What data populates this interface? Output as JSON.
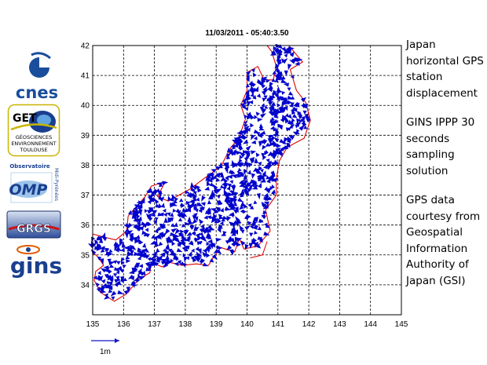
{
  "logos": {
    "cnes": "cnes",
    "get": "GET",
    "get_lines": [
      "GÉOSCIENCES",
      "ENVIRONNEMENT",
      "TOULOUSE"
    ],
    "observatoire": "Observatoire",
    "midi_pyrenees": "Midi-Pyrénées",
    "omp": "OMP",
    "grgs": "GRGS",
    "gins": "gins"
  },
  "plot": {
    "title": "11/03/2011 - 05:40:3.50",
    "scale_label": "1m"
  },
  "caption": {
    "paragraphs": [
      "Japan horizontal GPS station displacement",
      "GINS IPPP 30 seconds sampling solution",
      "GPS data courtesy from Geospatial Information Authority of Japan (GSI)"
    ]
  },
  "map_data": {
    "lon_range": [
      135,
      145
    ],
    "lat_range": [
      33,
      42
    ],
    "lon_ticks": [
      135,
      136,
      137,
      138,
      139,
      140,
      141,
      142,
      143,
      144,
      145
    ],
    "lat_ticks": [
      34,
      35,
      36,
      37,
      38,
      39,
      40,
      41,
      42
    ],
    "grid": "dashed",
    "coastline_color": "#e00000",
    "arrow_color": "#0000cc",
    "frame_color": "#000000",
    "scale_bar_length_m": 1,
    "coastline": [
      [
        141.35,
        42
      ],
      [
        141.8,
        41.45
      ],
      [
        141.4,
        41.2
      ],
      [
        141.6,
        40.5
      ],
      [
        141.9,
        40.1
      ],
      [
        142.05,
        39.5
      ],
      [
        141.85,
        38.9
      ],
      [
        141.3,
        38.6
      ],
      [
        141.05,
        38.15
      ],
      [
        140.95,
        37.55
      ],
      [
        140.95,
        37.0
      ],
      [
        140.6,
        36.5
      ],
      [
        140.75,
        35.8
      ],
      [
        140.35,
        35.3
      ],
      [
        139.9,
        35.2
      ],
      [
        139.75,
        35.55
      ],
      [
        139.6,
        35.1
      ],
      [
        139.15,
        35.25
      ],
      [
        138.9,
        34.9
      ],
      [
        138.75,
        34.65
      ],
      [
        138.35,
        34.7
      ],
      [
        137.9,
        34.65
      ],
      [
        137.5,
        34.75
      ],
      [
        137.25,
        34.6
      ],
      [
        136.9,
        34.75
      ],
      [
        136.85,
        34.4
      ],
      [
        136.5,
        34.2
      ],
      [
        136.1,
        33.7
      ],
      [
        135.7,
        33.45
      ],
      [
        135.25,
        33.75
      ],
      [
        135.05,
        34.15
      ],
      [
        135.1,
        34.45
      ],
      [
        135.35,
        34.65
      ],
      [
        135.2,
        34.9
      ],
      [
        135,
        35.1
      ],
      [
        135,
        35.7
      ],
      [
        135.35,
        35.6
      ],
      [
        135.75,
        35.5
      ],
      [
        136.1,
        35.8
      ],
      [
        136.15,
        36.3
      ],
      [
        136.7,
        36.95
      ],
      [
        136.9,
        37.3
      ],
      [
        137.35,
        37.45
      ],
      [
        137.1,
        36.95
      ],
      [
        137.45,
        36.8
      ],
      [
        138.15,
        37.2
      ],
      [
        138.6,
        37.55
      ],
      [
        139.15,
        37.95
      ],
      [
        139.45,
        38.55
      ],
      [
        139.75,
        38.95
      ],
      [
        139.95,
        39.55
      ],
      [
        139.8,
        40.0
      ],
      [
        140.0,
        40.5
      ],
      [
        140.0,
        41.1
      ],
      [
        140.35,
        41.3
      ],
      [
        140.55,
        40.85
      ],
      [
        140.85,
        40.85
      ],
      [
        140.95,
        41.3
      ],
      [
        140.8,
        41.8
      ],
      [
        140.65,
        42
      ]
    ]
  }
}
